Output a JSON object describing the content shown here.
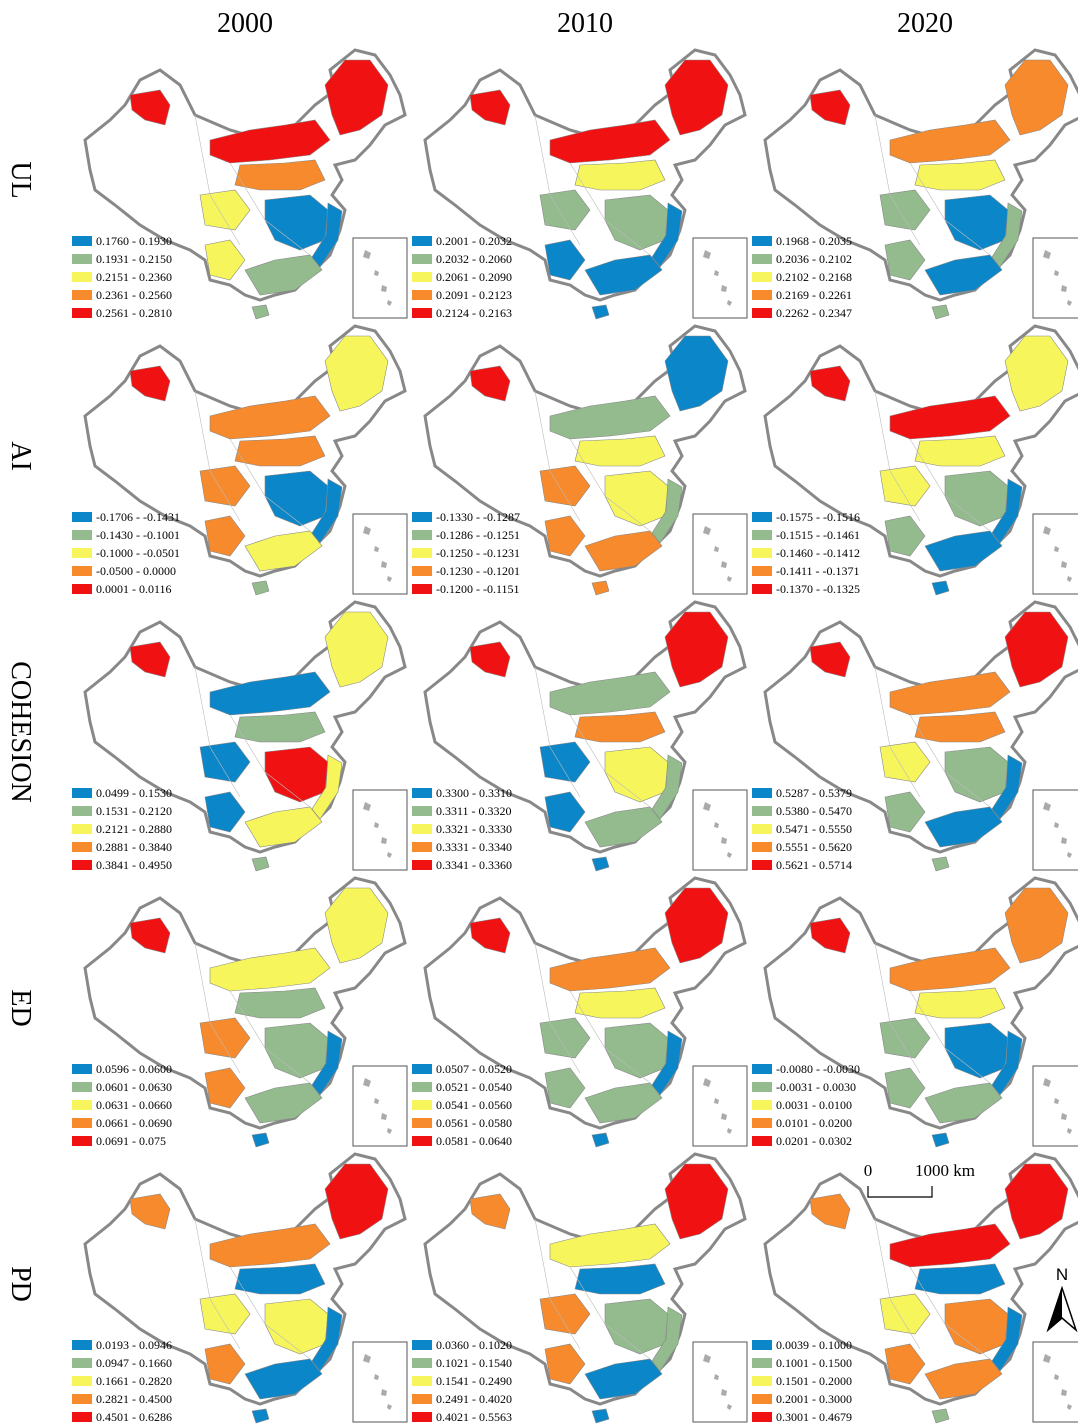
{
  "columns": [
    "2000",
    "2010",
    "2020"
  ],
  "legend_colors": [
    "#0b86c8",
    "#93bb8e",
    "#f6f65c",
    "#f68a2c",
    "#f01212"
  ],
  "rows": [
    {
      "label": "UL",
      "maps": [
        {
          "legend": [
            "0.1760 - 0.1930",
            "0.1931 - 0.2150",
            "0.2151 - 0.2360",
            "0.2361 - 0.2560",
            "0.2561 - 0.2810"
          ]
        },
        {
          "legend": [
            "0.2001 - 0.2032",
            "0.2032 - 0.2060",
            "0.2061 - 0.2090",
            "0.2091 - 0.2123",
            "0.2124 - 0.2163"
          ]
        },
        {
          "legend": [
            "0.1968 - 0.2035",
            "0.2036 - 0.2102",
            "0.2102 - 0.2168",
            "0.2169 - 0.2261",
            "0.2262 - 0.2347"
          ]
        }
      ]
    },
    {
      "label": "AI",
      "maps": [
        {
          "legend": [
            "-0.1706 - -0.1431",
            "-0.1430 - -0.1001",
            "-0.1000 - -0.0501",
            "-0.0500 - 0.0000",
            "0.0001 - 0.0116"
          ]
        },
        {
          "legend": [
            "-0.1330 - -0.1287",
            "-0.1286 - -0.1251",
            "-0.1250 - -0.1231",
            "-0.1230 - -0.1201",
            "-0.1200 - -0.1151"
          ]
        },
        {
          "legend": [
            "-0.1575 - -0.1516",
            "-0.1515 - -0.1461",
            "-0.1460 - -0.1412",
            "-0.1411 - -0.1371",
            "-0.1370 - -0.1325"
          ]
        }
      ]
    },
    {
      "label": "COHESION",
      "maps": [
        {
          "legend": [
            "0.0499 - 0.1530",
            "0.1531 - 0.2120",
            "0.2121 - 0.2880",
            "0.2881 - 0.3840",
            "0.3841 - 0.4950"
          ]
        },
        {
          "legend": [
            "0.3300 - 0.3310",
            "0.3311 - 0.3320",
            "0.3321 - 0.3330",
            "0.3331 - 0.3340",
            "0.3341 - 0.3360"
          ]
        },
        {
          "legend": [
            "0.5287 - 0.5379",
            "0.5380 - 0.5470",
            "0.5471 - 0.5550",
            "0.5551 - 0.5620",
            "0.5621 - 0.5714"
          ]
        }
      ]
    },
    {
      "label": "ED",
      "maps": [
        {
          "legend": [
            "0.0596 - 0.0600",
            "0.0601 - 0.0630",
            "0.0631 - 0.0660",
            "0.0661 - 0.0690",
            "0.0691 - 0.075"
          ]
        },
        {
          "legend": [
            "0.0507 - 0.0520",
            "0.0521 - 0.0540",
            "0.0541 - 0.0560",
            "0.0561 - 0.0580",
            "0.0581 - 0.0640"
          ]
        },
        {
          "legend": [
            "-0.0080 - -0.0030",
            "-0.0031 - 0.0030",
            "0.0031 - 0.0100",
            "0.0101 - 0.0200",
            "0.0201 - 0.0302"
          ]
        }
      ]
    },
    {
      "label": "PD",
      "maps": [
        {
          "legend": [
            "0.0193 - 0.0946",
            "0.0947 - 0.1660",
            "0.1661 - 0.2820",
            "0.2821 - 0.4500",
            "0.4501 - 0.6286"
          ]
        },
        {
          "legend": [
            "0.0360 - 0.1020",
            "0.1021 - 0.1540",
            "0.1541 - 0.2490",
            "0.2491 - 0.4020",
            "0.4021 - 0.5563"
          ]
        },
        {
          "legend": [
            "0.0039 - 0.1000",
            "0.1001 - 0.1500",
            "0.1501 - 0.2000",
            "0.2001 - 0.3000",
            "0.3001 - 0.4679"
          ]
        }
      ]
    }
  ],
  "scale_bar": {
    "start": "0",
    "end": "1000 km"
  },
  "north": "N"
}
